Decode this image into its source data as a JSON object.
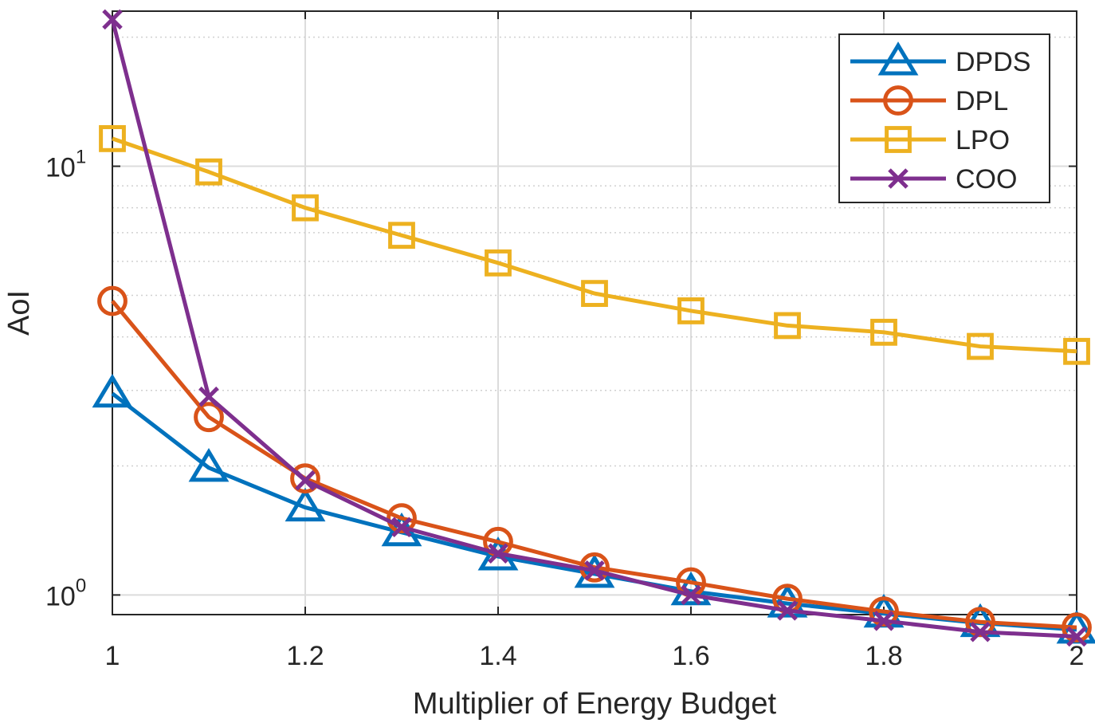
{
  "chart_data": {
    "type": "line",
    "title": "",
    "xlabel": "Multiplier of Energy Budget",
    "ylabel": "AoI",
    "xlim": [
      1,
      2
    ],
    "ylim": [
      0.9,
      23
    ],
    "yscale": "log",
    "grid": true,
    "legend_position": "top-right",
    "x_ticks": [
      1,
      1.2,
      1.4,
      1.6,
      1.8,
      2
    ],
    "x_tick_labels": [
      "1",
      "1.2",
      "1.4",
      "1.6",
      "1.8",
      "2"
    ],
    "y_ticks": [
      {
        "value": 1,
        "base": "10",
        "exp": "0"
      },
      {
        "value": 10,
        "base": "10",
        "exp": "1"
      }
    ],
    "x": [
      1,
      1.1,
      1.2,
      1.3,
      1.4,
      1.5,
      1.6,
      1.7,
      1.8,
      1.9,
      2
    ],
    "series": [
      {
        "name": "DPDS",
        "color": "#0072BD",
        "marker": "triangle",
        "values": [
          2.95,
          1.98,
          1.6,
          1.4,
          1.23,
          1.12,
          1.02,
          0.955,
          0.905,
          0.86,
          0.83
        ]
      },
      {
        "name": "DPL",
        "color": "#D95319",
        "marker": "circle",
        "values": [
          4.85,
          2.6,
          1.87,
          1.51,
          1.33,
          1.16,
          1.07,
          0.98,
          0.915,
          0.865,
          0.84
        ]
      },
      {
        "name": "LPO",
        "color": "#EDB120",
        "marker": "square",
        "values": [
          11.6,
          9.7,
          8.0,
          6.9,
          5.95,
          5.05,
          4.6,
          4.25,
          4.1,
          3.8,
          3.7
        ]
      },
      {
        "name": "COO",
        "color": "#7E2F8E",
        "marker": "x",
        "values": [
          22.0,
          2.9,
          1.85,
          1.44,
          1.25,
          1.14,
          1.0,
          0.92,
          0.87,
          0.82,
          0.8
        ]
      }
    ]
  }
}
